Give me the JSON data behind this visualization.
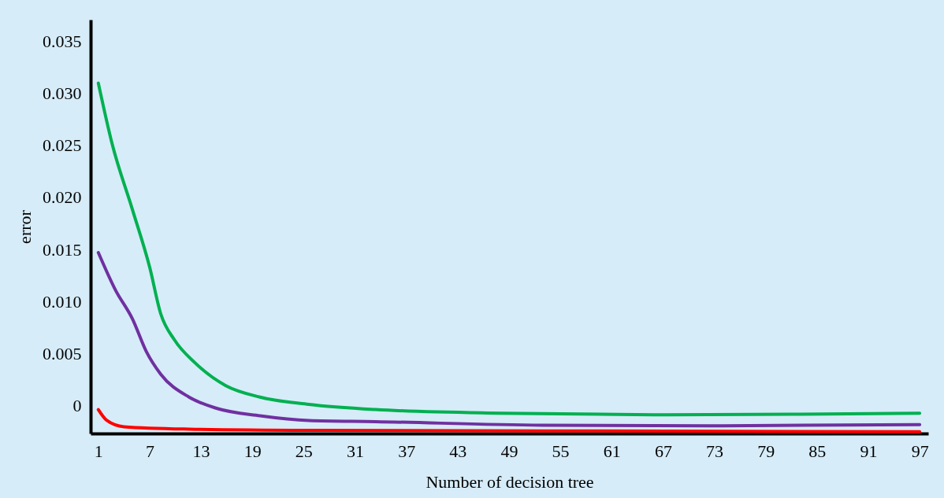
{
  "chart_data": {
    "type": "line",
    "xlabel": "Number of decision tree",
    "ylabel": "error",
    "xlim": [
      0.1,
      98
    ],
    "xticks": [
      1,
      7,
      13,
      19,
      25,
      31,
      37,
      43,
      49,
      55,
      61,
      67,
      73,
      79,
      85,
      91,
      97
    ],
    "ylim": [
      -0.0027,
      0.0371
    ],
    "yticks": [
      {
        "value": 0,
        "label": "0"
      },
      {
        "value": 0.005,
        "label": "0.005"
      },
      {
        "value": 0.01,
        "label": "0.010"
      },
      {
        "value": 0.015,
        "label": "0.015"
      },
      {
        "value": 0.02,
        "label": "0.020"
      },
      {
        "value": 0.025,
        "label": "0.025"
      },
      {
        "value": 0.03,
        "label": "0.030"
      },
      {
        "value": 0.035,
        "label": "0.035"
      }
    ],
    "grid": false,
    "marker": "none",
    "line_style": "solid",
    "series": [
      {
        "color": "#00b050",
        "x": [
          1,
          2.6,
          5.0,
          7.0,
          8.3,
          9.9,
          12.3,
          15.9,
          19.9,
          25.6,
          33.4,
          48.0,
          67.4,
          82.0,
          97
        ],
        "values": [
          0.031,
          0.0252,
          0.0188,
          0.0133,
          0.0088,
          0.0063,
          0.0041,
          0.0019,
          0.0008,
          0.0001,
          -0.0004,
          -0.00075,
          -0.0009,
          -0.00085,
          -0.00075
        ]
      },
      {
        "color": "#7030a0",
        "x": [
          1,
          3.0,
          5.0,
          6.6,
          8.3,
          11.6,
          14.9,
          19.9,
          25.6,
          33.4,
          52.9,
          72.3,
          97
        ],
        "values": [
          0.0147,
          0.0111,
          0.0083,
          0.0052,
          0.003,
          0.0008,
          -0.0003,
          -0.001,
          -0.00145,
          -0.00156,
          -0.0019,
          -0.00196,
          -0.00184
        ]
      },
      {
        "color": "#ff0000",
        "x": [
          1,
          2,
          4,
          11.6,
          25.6,
          52.9,
          97
        ],
        "values": [
          -0.0004,
          -0.00145,
          -0.00205,
          -0.00228,
          -0.0024,
          -0.00245,
          -0.00253
        ]
      }
    ]
  }
}
